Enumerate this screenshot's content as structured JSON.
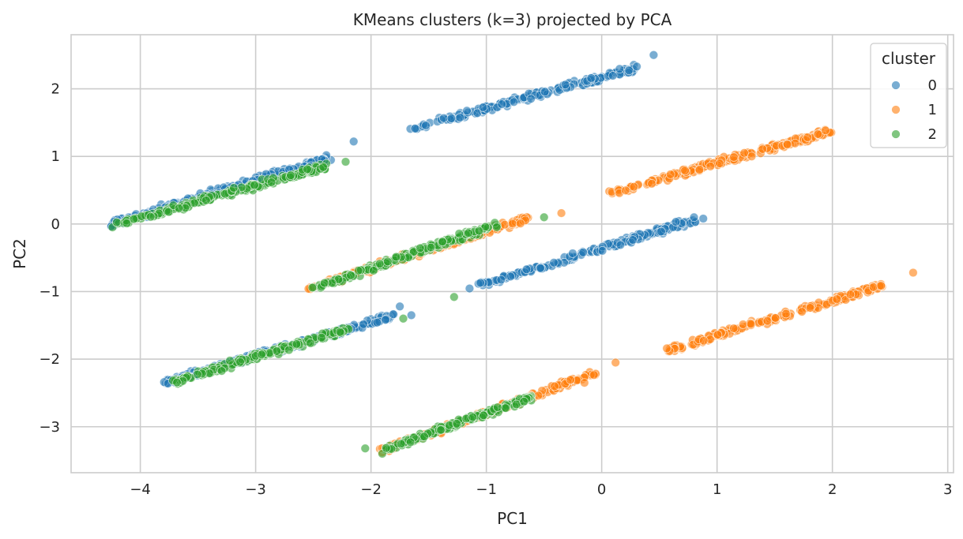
{
  "chart_data": {
    "type": "scatter",
    "title": "KMeans clusters (k=3) projected by PCA",
    "xlabel": "PC1",
    "ylabel": "PC2",
    "xlim": [
      -4.6,
      3.05
    ],
    "ylim": [
      -3.68,
      2.8
    ],
    "xticks": [
      -4,
      -3,
      -2,
      -1,
      0,
      1,
      2,
      3
    ],
    "yticks": [
      -3,
      -2,
      -1,
      0,
      1,
      2
    ],
    "grid": true,
    "legend": {
      "title": "cluster",
      "placement": "top-right"
    },
    "series": [
      {
        "name": "0",
        "color": "#1f77b4",
        "bands": [
          {
            "x": [
              -4.25,
              -2.35
            ],
            "y": [
              0.0,
              0.98
            ]
          },
          {
            "x": [
              -1.65,
              0.3
            ],
            "y": [
              1.42,
              2.3
            ]
          },
          {
            "x": [
              -1.15,
              0.8
            ],
            "y": [
              -0.95,
              0.05
            ]
          },
          {
            "x": [
              -3.8,
              -1.8
            ],
            "y": [
              -2.35,
              -1.35
            ]
          }
        ],
        "outliers": [
          [
            0.45,
            2.5
          ],
          [
            -2.15,
            1.22
          ],
          [
            0.8,
            0.1
          ],
          [
            -1.65,
            -1.35
          ],
          [
            -1.75,
            -1.22
          ],
          [
            0.88,
            0.08
          ]
        ]
      },
      {
        "name": "1",
        "color": "#ff7f0e",
        "bands": [
          {
            "x": [
              0.05,
              2.0
            ],
            "y": [
              0.45,
              1.38
            ]
          },
          {
            "x": [
              -2.55,
              -0.65
            ],
            "y": [
              -0.95,
              0.08
            ]
          },
          {
            "x": [
              0.55,
              2.45
            ],
            "y": [
              -1.88,
              -0.9
            ]
          },
          {
            "x": [
              -1.9,
              -0.05
            ],
            "y": [
              -3.35,
              -2.2
            ]
          }
        ],
        "outliers": [
          [
            2.7,
            -0.72
          ],
          [
            0.12,
            -2.05
          ],
          [
            -0.35,
            0.16
          ],
          [
            -0.15,
            -2.35
          ]
        ]
      },
      {
        "name": "2",
        "color": "#2ca02c",
        "bands": [
          {
            "x": [
              -4.25,
              -2.4
            ],
            "y": [
              -0.02,
              0.85
            ]
          },
          {
            "x": [
              -2.5,
              -0.9
            ],
            "y": [
              -0.95,
              0.0
            ]
          },
          {
            "x": [
              -3.75,
              -2.2
            ],
            "y": [
              -2.35,
              -1.55
            ]
          },
          {
            "x": [
              -1.9,
              -0.6
            ],
            "y": [
              -3.35,
              -2.55
            ]
          }
        ],
        "outliers": [
          [
            -2.22,
            0.92
          ],
          [
            -1.72,
            -1.4
          ],
          [
            -1.28,
            -1.08
          ],
          [
            -0.5,
            0.1
          ],
          [
            -2.05,
            -3.32
          ]
        ]
      }
    ]
  }
}
